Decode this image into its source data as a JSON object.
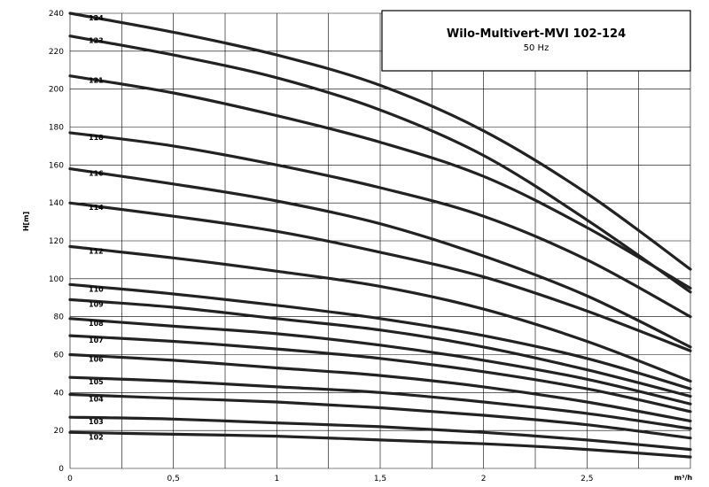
{
  "chart_data": {
    "type": "line",
    "title": "Wilo-Multivert-MVI 102-124",
    "subtitle": "50 Hz",
    "xlabel": "m³/h",
    "ylabel": "H[m]",
    "xlim": [
      0,
      3.0
    ],
    "ylim": [
      0,
      240
    ],
    "x_ticks": [
      "0",
      "0,5",
      "1",
      "1,5",
      "2",
      "2,5"
    ],
    "y_ticks": [
      "0",
      "20",
      "40",
      "60",
      "80",
      "100",
      "120",
      "140",
      "160",
      "180",
      "200",
      "220",
      "240"
    ],
    "grid": true,
    "series": [
      {
        "name": "124",
        "x": [
          0,
          0.5,
          1.0,
          1.5,
          2.0,
          2.5,
          3.0
        ],
        "y": [
          240,
          230,
          218,
          202,
          178,
          145,
          105
        ]
      },
      {
        "name": "123",
        "x": [
          0,
          0.5,
          1.0,
          1.5,
          2.0,
          2.5,
          3.0
        ],
        "y": [
          228,
          218,
          206,
          189,
          165,
          131,
          93
        ]
      },
      {
        "name": "121",
        "x": [
          0,
          0.5,
          1.0,
          1.5,
          2.0,
          2.5,
          3.0
        ],
        "y": [
          207,
          198,
          186,
          172,
          154,
          127,
          95
        ]
      },
      {
        "name": "118",
        "x": [
          0,
          0.5,
          1.0,
          1.5,
          2.0,
          2.5,
          3.0
        ],
        "y": [
          177,
          170,
          160,
          148,
          133,
          110,
          80
        ]
      },
      {
        "name": "116",
        "x": [
          0,
          0.5,
          1.0,
          1.5,
          2.0,
          2.5,
          3.0
        ],
        "y": [
          158,
          150,
          141,
          129,
          112,
          91,
          64
        ]
      },
      {
        "name": "114",
        "x": [
          0,
          0.5,
          1.0,
          1.5,
          2.0,
          2.5,
          3.0
        ],
        "y": [
          140,
          133,
          125,
          114,
          101,
          83,
          62
        ]
      },
      {
        "name": "112",
        "x": [
          0,
          0.5,
          1.0,
          1.5,
          2.0,
          2.5,
          3.0
        ],
        "y": [
          117,
          111,
          104,
          96,
          84,
          67,
          46
        ]
      },
      {
        "name": "110",
        "x": [
          0,
          0.5,
          1.0,
          1.5,
          2.0,
          2.5,
          3.0
        ],
        "y": [
          97,
          92,
          86,
          79,
          70,
          58,
          42
        ]
      },
      {
        "name": "109",
        "x": [
          0,
          0.5,
          1.0,
          1.5,
          2.0,
          2.5,
          3.0
        ],
        "y": [
          89,
          85,
          79,
          73,
          64,
          52,
          38
        ]
      },
      {
        "name": "108",
        "x": [
          0,
          0.5,
          1.0,
          1.5,
          2.0,
          2.5,
          3.0
        ],
        "y": [
          79,
          75,
          71,
          65,
          57,
          47,
          34
        ]
      },
      {
        "name": "107",
        "x": [
          0,
          0.5,
          1.0,
          1.5,
          2.0,
          2.5,
          3.0
        ],
        "y": [
          70,
          67,
          63,
          58,
          51,
          42,
          30
        ]
      },
      {
        "name": "106",
        "x": [
          0,
          0.5,
          1.0,
          1.5,
          2.0,
          2.5,
          3.0
        ],
        "y": [
          60,
          57,
          53,
          49,
          43,
          35,
          25
        ]
      },
      {
        "name": "105",
        "x": [
          0,
          0.5,
          1.0,
          1.5,
          2.0,
          2.5,
          3.0
        ],
        "y": [
          48,
          46,
          43,
          40,
          35,
          29,
          21
        ]
      },
      {
        "name": "104",
        "x": [
          0,
          0.5,
          1.0,
          1.5,
          2.0,
          2.5,
          3.0
        ],
        "y": [
          39,
          37,
          35,
          32,
          28,
          23,
          16
        ]
      },
      {
        "name": "103",
        "x": [
          0,
          0.5,
          1.0,
          1.5,
          2.0,
          2.5,
          3.0
        ],
        "y": [
          27,
          26,
          24,
          22,
          19,
          15,
          10
        ]
      },
      {
        "name": "102",
        "x": [
          0,
          0.5,
          1.0,
          1.5,
          2.0,
          2.5,
          3.0
        ],
        "y": [
          19,
          18,
          17,
          15,
          13,
          10,
          6
        ]
      }
    ]
  }
}
